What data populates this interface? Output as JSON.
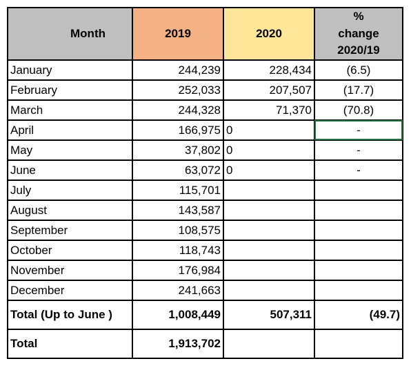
{
  "headers": {
    "month": "Month",
    "y2019": "2019",
    "y2020": "2020",
    "pct_line1": "%",
    "pct_line2": "change",
    "pct_line3": "2020/19"
  },
  "rows": [
    {
      "month": "January",
      "v2019": "244,239",
      "v2020": "228,434",
      "pct": "(6.5)"
    },
    {
      "month": "February",
      "v2019": "252,033",
      "v2020": "207,507",
      "pct": "(17.7)"
    },
    {
      "month": "March",
      "v2019": "244,328",
      "v2020": "71,370",
      "pct": "(70.8)"
    },
    {
      "month": "April",
      "v2019": "166,975",
      "v2020": "0",
      "pct": "-"
    },
    {
      "month": "May",
      "v2019": "37,802",
      "v2020": "0",
      "pct": "-"
    },
    {
      "month": "June",
      "v2019": "63,072",
      "v2020": "0",
      "pct": "-"
    },
    {
      "month": "July",
      "v2019": "115,701",
      "v2020": "",
      "pct": ""
    },
    {
      "month": "August",
      "v2019": "143,587",
      "v2020": "",
      "pct": ""
    },
    {
      "month": "September",
      "v2019": "108,575",
      "v2020": "",
      "pct": ""
    },
    {
      "month": "October",
      "v2019": "118,743",
      "v2020": "",
      "pct": ""
    },
    {
      "month": "November",
      "v2019": "176,984",
      "v2020": "",
      "pct": ""
    },
    {
      "month": "December",
      "v2019": "241,663",
      "v2020": "",
      "pct": ""
    }
  ],
  "total_to_june": {
    "label": "Total (Up to June )",
    "v2019": "1,008,449",
    "v2020": "507,311",
    "pct": "(49.7)"
  },
  "total": {
    "label": "Total",
    "v2019": "1,913,702",
    "v2020": "",
    "pct": ""
  },
  "colors": {
    "month_header": "#bfbfbf",
    "y2019_header": "#f4b183",
    "y2020_header": "#ffe699",
    "pct_header": "#bfbfbf",
    "selection": "#217346"
  }
}
